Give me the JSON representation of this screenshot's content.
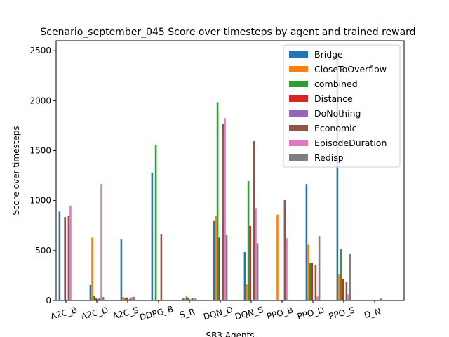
{
  "chart_data": {
    "type": "bar",
    "title": "Scenario_september_045 Score over timesteps by agent and trained reward",
    "xlabel": "SB3 Agents",
    "ylabel": "Score over timesteps",
    "ylim": [
      0,
      2600
    ],
    "yticks": [
      0,
      500,
      1000,
      1500,
      2000,
      2500
    ],
    "grid": false,
    "legend_position": "top-right",
    "categories": [
      "A2C_B",
      "A2C_D",
      "A2C_S",
      "DDPG_B",
      "S_R",
      "DQN_D",
      "DQN_S",
      "PPO_B",
      "PPO_D",
      "PPO_S",
      "D_N"
    ],
    "series": [
      {
        "name": "Bridge",
        "color": "#1f77b4",
        "values": [
          890,
          155,
          610,
          1280,
          20,
          795,
          485,
          0,
          1165,
          2470,
          0
        ]
      },
      {
        "name": "CloseToOverflow",
        "color": "#ff7f0e",
        "values": [
          0,
          630,
          35,
          0,
          20,
          850,
          160,
          860,
          560,
          265,
          0
        ]
      },
      {
        "name": "combined",
        "color": "#2ca02c",
        "values": [
          0,
          50,
          25,
          1560,
          40,
          1985,
          1195,
          0,
          375,
          520,
          0
        ]
      },
      {
        "name": "Distance",
        "color": "#d62728",
        "values": [
          835,
          25,
          30,
          0,
          25,
          630,
          745,
          0,
          375,
          215,
          0
        ]
      },
      {
        "name": "DoNothing",
        "color": "#9467bd",
        "values": [
          0,
          15,
          10,
          0,
          10,
          0,
          0,
          0,
          0,
          0,
          0
        ]
      },
      {
        "name": "Economic",
        "color": "#8c564b",
        "values": [
          845,
          25,
          20,
          660,
          25,
          1765,
          1595,
          1005,
          355,
          190,
          0
        ]
      },
      {
        "name": "EpisodeDuration",
        "color": "#e377c2",
        "values": [
          950,
          1165,
          35,
          0,
          25,
          1825,
          925,
          625,
          40,
          60,
          0
        ]
      },
      {
        "name": "Redisp",
        "color": "#7f7f7f",
        "values": [
          0,
          35,
          35,
          0,
          20,
          655,
          575,
          0,
          645,
          465,
          20
        ]
      }
    ]
  }
}
